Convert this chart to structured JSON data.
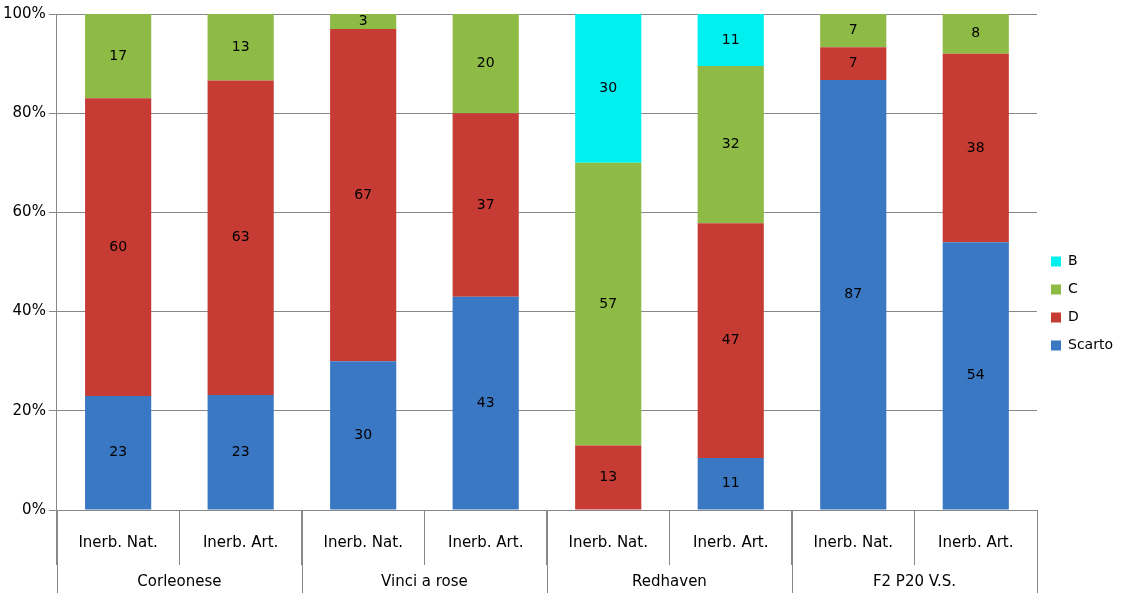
{
  "chart_data": {
    "type": "bar",
    "stacked": true,
    "categories": [
      "Inerb. Nat.",
      "Inerb. Art.",
      "Inerb. Nat.",
      "Inerb. Art.",
      "Inerb. Nat.",
      "Inerb. Art.",
      "Inerb. Nat.",
      "Inerb. Art."
    ],
    "series": [
      {
        "name": "Scarto",
        "color": "#3b78c4",
        "values": [
          23,
          23.2,
          30,
          43,
          null,
          10.5,
          86.7,
          54
        ],
        "value_labels": [
          "23",
          "23",
          "30",
          "43",
          null,
          "11",
          "87",
          "54"
        ]
      },
      {
        "name": "D",
        "color": "#c63c35",
        "values": [
          60,
          63.4,
          67,
          37,
          13,
          47.3,
          6.6,
          38
        ],
        "value_labels": [
          "60",
          "63",
          "67",
          "37",
          "13",
          "47",
          "7",
          "38"
        ]
      },
      {
        "name": "C",
        "color": "#8dbb45",
        "values": [
          17,
          13.4,
          3,
          20,
          57,
          31.7,
          6.7,
          8
        ],
        "value_labels": [
          "17",
          "13",
          "3",
          "20",
          "57",
          "32",
          "7",
          "8"
        ]
      },
      {
        "name": "B",
        "color": "#00f0f0",
        "values": [
          null,
          null,
          null,
          null,
          30,
          10.5,
          null,
          null
        ],
        "value_labels": [
          null,
          null,
          null,
          null,
          "30",
          "11",
          null,
          null
        ]
      }
    ],
    "ylim": [
      0,
      100
    ],
    "yticks": [
      {
        "value": 0,
        "label": "0%"
      },
      {
        "value": 20,
        "label": "20%"
      },
      {
        "value": 40,
        "label": "40%"
      },
      {
        "value": 60,
        "label": "60%"
      },
      {
        "value": 80,
        "label": "80%"
      },
      {
        "value": 100,
        "label": "100%"
      }
    ],
    "grid": "y",
    "legend": "right",
    "annotations": [
      "Corleonese",
      "Vinci a rose",
      "Redhaven",
      "F2 P20 V.S."
    ]
  }
}
